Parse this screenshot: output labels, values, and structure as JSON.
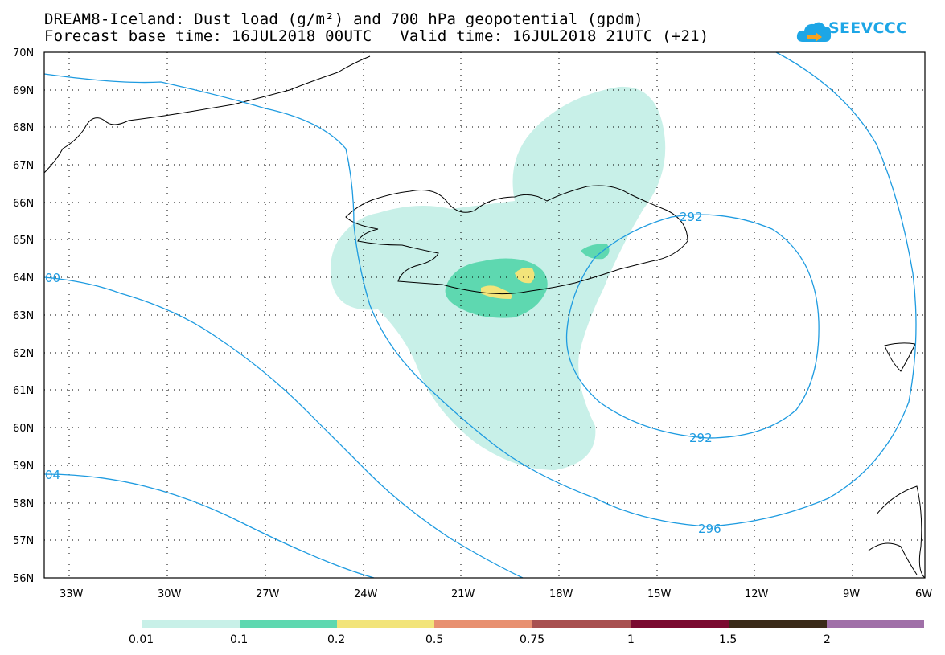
{
  "title": {
    "line1": "DREAM8-Iceland: Dust load (g/m²) and 700 hPa geopotential (gpdm)",
    "line2": "Forecast base time: 16JUL2018 00UTC   Valid time: 16JUL2018 21UTC (+21)"
  },
  "logo": {
    "text": "SEEVCCC",
    "icon": "cloud-arrow-icon",
    "color": "#1da6e6"
  },
  "map": {
    "lat_labels": [
      "70N",
      "69N",
      "68N",
      "67N",
      "66N",
      "65N",
      "64N",
      "63N",
      "62N",
      "61N",
      "60N",
      "59N",
      "58N",
      "57N",
      "56N"
    ],
    "lon_labels": [
      "33W",
      "30W",
      "27W",
      "24W",
      "21W",
      "18W",
      "15W",
      "12W",
      "9W",
      "6W"
    ],
    "contour_labels": [
      {
        "text": "292",
        "key": "c292a"
      },
      {
        "text": "292",
        "key": "c292b"
      },
      {
        "text": "296",
        "key": "c296"
      },
      {
        "text": "00",
        "key": "c300"
      },
      {
        "text": "04",
        "key": "c304"
      }
    ],
    "contour_color": "#1e9be0",
    "dust_colors": [
      "#c8f0e8",
      "#5ed8b0",
      "#f2e47a"
    ]
  },
  "colorbar": {
    "colors": [
      "#c8f0e8",
      "#5ed8b0",
      "#f2e47a",
      "#e89070",
      "#a85050",
      "#7a0a30",
      "#3a2a18",
      "#a070a8"
    ],
    "labels": [
      "0.01",
      "0.1",
      "0.2",
      "0.5",
      "0.75",
      "1",
      "1.5",
      "2"
    ]
  }
}
